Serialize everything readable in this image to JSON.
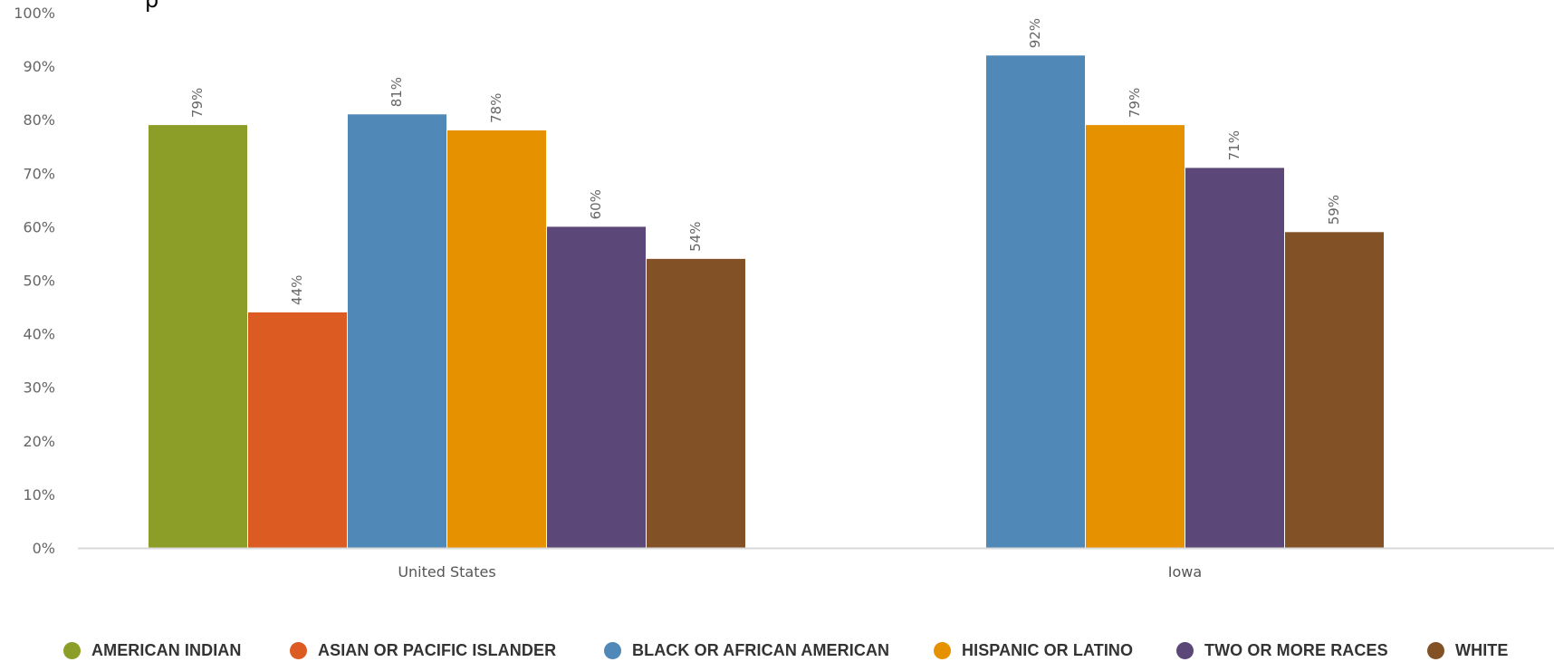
{
  "title_partial": "p",
  "chart_data": {
    "type": "bar",
    "categories": [
      "United States",
      "Iowa"
    ],
    "series": [
      {
        "name": "AMERICAN INDIAN",
        "color": "#8c9d28",
        "values": [
          79,
          null
        ],
        "labels": [
          "79%",
          ""
        ]
      },
      {
        "name": "ASIAN OR PACIFIC ISLANDER",
        "color": "#dc5b23",
        "values": [
          44,
          null
        ],
        "labels": [
          "44%",
          ""
        ]
      },
      {
        "name": "BLACK OR AFRICAN AMERICAN",
        "color": "#5088b7",
        "values": [
          81,
          92
        ],
        "labels": [
          "81%",
          "92%"
        ]
      },
      {
        "name": "HISPANIC OR LATINO",
        "color": "#e69100",
        "values": [
          78,
          79
        ],
        "labels": [
          "78%",
          "79%"
        ]
      },
      {
        "name": "TWO OR MORE RACES",
        "color": "#5c4779",
        "values": [
          60,
          71
        ],
        "labels": [
          "60%",
          "71%"
        ]
      },
      {
        "name": "WHITE",
        "color": "#825226",
        "values": [
          54,
          59
        ],
        "labels": [
          "54%",
          "59%"
        ]
      }
    ],
    "yticks": [
      "0%",
      "10%",
      "20%",
      "30%",
      "40%",
      "50%",
      "60%",
      "70%",
      "80%",
      "90%",
      "100%"
    ],
    "ylim": [
      0,
      100
    ],
    "grid": false,
    "legend_position": "bottom"
  }
}
